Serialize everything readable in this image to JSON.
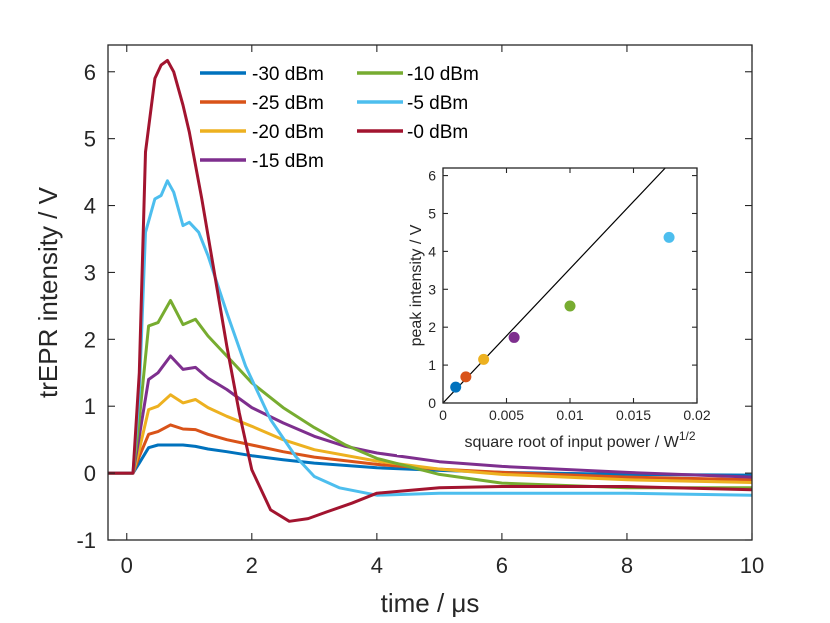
{
  "chart_data": [
    {
      "type": "line",
      "xlabel": "time / μs",
      "ylabel": "trEPR intensity / V",
      "xlim": [
        -0.3,
        10
      ],
      "ylim": [
        -1,
        6.4
      ],
      "xticks": [
        0,
        2,
        4,
        6,
        8,
        10
      ],
      "yticks": [
        -1,
        0,
        1,
        2,
        3,
        4,
        5,
        6
      ],
      "xtick_labels": [
        "0",
        "2",
        "4",
        "6",
        "8",
        "10"
      ],
      "ytick_labels": [
        "-1",
        "0",
        "1",
        "2",
        "3",
        "4",
        "5",
        "6"
      ],
      "series": [
        {
          "name": "-30 dBm",
          "color": "#0072BD",
          "x": [
            -0.3,
            0.1,
            0.2,
            0.35,
            0.5,
            0.7,
            0.9,
            1.1,
            1.3,
            1.6,
            2.0,
            2.5,
            3.0,
            4.0,
            5.0,
            6.0,
            8.0,
            10.0
          ],
          "y": [
            0,
            0,
            0.15,
            0.38,
            0.42,
            0.42,
            0.42,
            0.4,
            0.36,
            0.32,
            0.26,
            0.2,
            0.15,
            0.08,
            0.04,
            0.01,
            -0.02,
            -0.03
          ]
        },
        {
          "name": "-25 dBm",
          "color": "#D95319",
          "x": [
            -0.3,
            0.1,
            0.2,
            0.35,
            0.5,
            0.7,
            0.9,
            1.1,
            1.3,
            1.6,
            2.0,
            2.5,
            3.0,
            4.0,
            5.0,
            6.0,
            8.0,
            10.0
          ],
          "y": [
            0,
            0,
            0.25,
            0.58,
            0.62,
            0.72,
            0.66,
            0.65,
            0.58,
            0.5,
            0.42,
            0.32,
            0.24,
            0.13,
            0.06,
            0.01,
            -0.06,
            -0.1
          ]
        },
        {
          "name": "-20 dBm",
          "color": "#EDB120",
          "x": [
            -0.3,
            0.1,
            0.2,
            0.35,
            0.5,
            0.7,
            0.9,
            1.1,
            1.3,
            1.6,
            2.0,
            2.5,
            3.0,
            4.0,
            5.0,
            6.0,
            8.0,
            10.0
          ],
          "y": [
            0,
            0,
            0.35,
            0.95,
            1.0,
            1.17,
            1.05,
            1.1,
            0.98,
            0.85,
            0.7,
            0.5,
            0.35,
            0.18,
            0.06,
            -0.02,
            -0.1,
            -0.14
          ]
        },
        {
          "name": "-15 dBm",
          "color": "#7E2F8E",
          "x": [
            -0.3,
            0.1,
            0.2,
            0.35,
            0.5,
            0.7,
            0.9,
            1.1,
            1.3,
            1.6,
            2.0,
            2.5,
            3.0,
            3.5,
            4.0,
            5.0,
            6.0,
            8.0,
            10.0
          ],
          "y": [
            0,
            0,
            0.55,
            1.4,
            1.5,
            1.75,
            1.55,
            1.58,
            1.42,
            1.25,
            0.98,
            0.75,
            0.55,
            0.4,
            0.3,
            0.17,
            0.1,
            0.01,
            -0.06
          ]
        },
        {
          "name": "-10 dBm",
          "color": "#77AC30",
          "x": [
            -0.3,
            0.1,
            0.2,
            0.35,
            0.5,
            0.7,
            0.9,
            1.1,
            1.3,
            1.6,
            2.0,
            2.5,
            3.0,
            3.5,
            4.0,
            5.0,
            6.0,
            8.0,
            10.0
          ],
          "y": [
            0,
            0,
            0.8,
            2.2,
            2.25,
            2.58,
            2.22,
            2.3,
            2.05,
            1.75,
            1.35,
            0.98,
            0.68,
            0.42,
            0.22,
            -0.02,
            -0.15,
            -0.22,
            -0.22
          ]
        },
        {
          "name": "-5 dBm",
          "color": "#4DBEEE",
          "x": [
            -0.3,
            0.1,
            0.2,
            0.3,
            0.45,
            0.55,
            0.65,
            0.75,
            0.9,
            1.0,
            1.15,
            1.3,
            1.6,
            1.9,
            2.3,
            2.7,
            3.0,
            3.4,
            4.0,
            5.0,
            6.0,
            8.0,
            10.0
          ],
          "y": [
            0,
            0,
            1.2,
            3.6,
            4.1,
            4.15,
            4.37,
            4.2,
            3.7,
            3.75,
            3.6,
            3.25,
            2.4,
            1.6,
            0.8,
            0.25,
            -0.05,
            -0.22,
            -0.33,
            -0.3,
            -0.3,
            -0.3,
            -0.33
          ]
        },
        {
          "name": "-0 dBm",
          "color": "#A2142F",
          "x": [
            -0.3,
            0.1,
            0.2,
            0.3,
            0.45,
            0.55,
            0.65,
            0.75,
            0.9,
            1.0,
            1.2,
            1.4,
            1.6,
            1.8,
            2.0,
            2.3,
            2.6,
            2.9,
            3.2,
            3.6,
            4.0,
            5.0,
            6.0,
            8.0,
            10.0
          ],
          "y": [
            0,
            0,
            1.5,
            4.8,
            5.9,
            6.1,
            6.17,
            6.0,
            5.5,
            5.1,
            4.1,
            3.0,
            1.9,
            0.9,
            0.05,
            -0.55,
            -0.72,
            -0.68,
            -0.58,
            -0.45,
            -0.3,
            -0.22,
            -0.2,
            -0.2,
            -0.25
          ]
        }
      ]
    },
    {
      "type": "scatter",
      "xlabel": "square root of input power / W",
      "xlabel_superscript": "1/2",
      "ylabel": "peak intensity / V",
      "xlim": [
        0,
        0.02
      ],
      "ylim": [
        0,
        6.2
      ],
      "xticks": [
        0,
        0.005,
        0.01,
        0.015,
        0.02
      ],
      "yticks": [
        0,
        1,
        2,
        3,
        4,
        5,
        6
      ],
      "xtick_labels": [
        "0",
        "0.005",
        "0.01",
        "0.015",
        "0.02"
      ],
      "ytick_labels": [
        "0",
        "1",
        "2",
        "3",
        "4",
        "5",
        "6"
      ],
      "points": [
        {
          "x": 0.001,
          "y": 0.42,
          "color": "#0072BD"
        },
        {
          "x": 0.0018,
          "y": 0.69,
          "color": "#D95319"
        },
        {
          "x": 0.0032,
          "y": 1.15,
          "color": "#EDB120"
        },
        {
          "x": 0.0056,
          "y": 1.73,
          "color": "#7E2F8E"
        },
        {
          "x": 0.01,
          "y": 2.56,
          "color": "#77AC30"
        },
        {
          "x": 0.0178,
          "y": 4.37,
          "color": "#4DBEEE"
        }
      ],
      "fit_line": {
        "x": [
          0,
          0.0175
        ],
        "y": [
          0,
          6.2
        ],
        "color": "#000000"
      }
    }
  ],
  "legend": {
    "title_unused": "",
    "position": "top-left"
  }
}
